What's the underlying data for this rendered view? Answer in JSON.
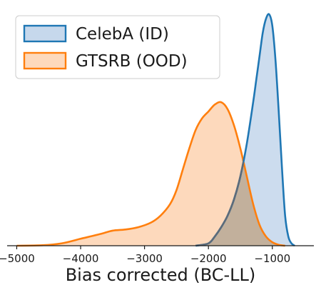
{
  "chart_data": {
    "type": "area",
    "title": "",
    "xlabel": "Bias corrected (BC-LL)",
    "ylabel": "",
    "xlim": [
      -5150,
      -350
    ],
    "ylim": [
      0,
      1.0
    ],
    "xticks": [
      -5000,
      -4000,
      -3000,
      -2000,
      -1000
    ],
    "xtick_labels": [
      "−5000",
      "−4000",
      "−3000",
      "−2000",
      "−1000"
    ],
    "grid": false,
    "legend_position": "top-left",
    "series": [
      {
        "name": "CelebA (ID)",
        "edge_color": "#1f77b4",
        "fill_color": "#c6d8ec",
        "x": [
          -2200,
          -2000,
          -1900,
          -1800,
          -1700,
          -1600,
          -1500,
          -1400,
          -1300,
          -1250,
          -1200,
          -1150,
          -1100,
          -1050,
          -1000,
          -950,
          -900,
          -850,
          -800,
          -750,
          -700,
          -650
        ],
        "y": [
          0.0,
          0.01,
          0.04,
          0.08,
          0.13,
          0.2,
          0.3,
          0.44,
          0.62,
          0.72,
          0.82,
          0.92,
          0.98,
          1.0,
          0.95,
          0.8,
          0.58,
          0.34,
          0.13,
          0.04,
          0.01,
          0.0
        ]
      },
      {
        "name": "GTSRB (OOD)",
        "edge_color": "#ff7f0e",
        "fill_color": "#fdd9bc",
        "x": [
          -5000,
          -4600,
          -4300,
          -4000,
          -3700,
          -3500,
          -3300,
          -3100,
          -2900,
          -2750,
          -2600,
          -2500,
          -2400,
          -2300,
          -2200,
          -2100,
          -2000,
          -1900,
          -1800,
          -1700,
          -1600,
          -1500,
          -1400,
          -1300,
          -1200,
          -1100,
          -1000,
          -900,
          -800
        ],
        "y": [
          0.0,
          0.002,
          0.01,
          0.03,
          0.05,
          0.065,
          0.07,
          0.08,
          0.1,
          0.13,
          0.18,
          0.24,
          0.33,
          0.42,
          0.5,
          0.55,
          0.58,
          0.61,
          0.62,
          0.59,
          0.52,
          0.42,
          0.3,
          0.18,
          0.09,
          0.04,
          0.015,
          0.004,
          0.0
        ]
      }
    ]
  }
}
